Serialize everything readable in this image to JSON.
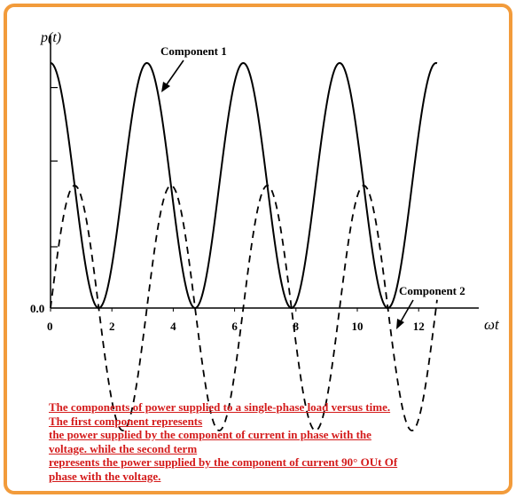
{
  "chart_data": {
    "type": "line",
    "ylabel": "p(t)",
    "xlabel": "ωt",
    "origin_label": "0.0",
    "x_ticks": [
      "0",
      "2",
      "4",
      "6",
      "8",
      "10",
      "12"
    ],
    "xlim": [
      0,
      12.6
    ],
    "series": [
      {
        "name": "Component 1",
        "style": "solid",
        "formula": "1 + cos(2x)",
        "amplitude": 2.0
      },
      {
        "name": "Component 2",
        "style": "dashed",
        "formula": "sin(2x)",
        "amplitude": 1.0
      }
    ],
    "annotations": [
      {
        "text": "Component 1",
        "points_to": "Component 1"
      },
      {
        "text": "Component 2",
        "points_to": "Component 2"
      }
    ]
  },
  "caption": {
    "lines": [
      "The components of power supplied to a single-phase load versus time.",
      "The first component represents",
      "the power supplied by the component of current in phase with the",
      "voltage. while the second term",
      "represents the power supplied by the component of current 90° OUt Of",
      "phase with the voltage."
    ]
  },
  "colors": {
    "border": "#f29b3b",
    "caption": "#d41b1b",
    "curve": "#000000"
  }
}
